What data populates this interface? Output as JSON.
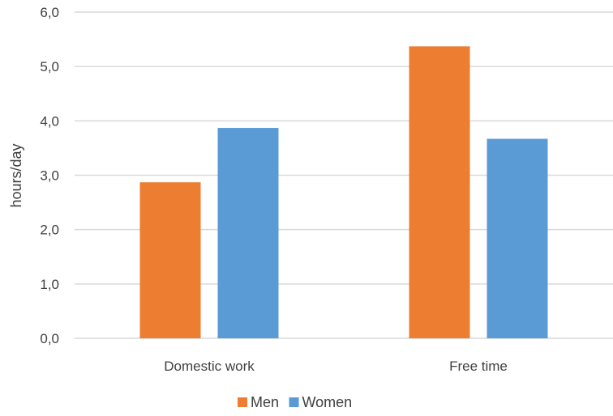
{
  "chart_data": {
    "type": "bar",
    "categories": [
      "Domestic work",
      "Free time"
    ],
    "series": [
      {
        "name": "Men",
        "values": [
          2.87,
          5.37
        ],
        "color": "#ED7D31"
      },
      {
        "name": "Women",
        "values": [
          3.87,
          3.67
        ],
        "color": "#5B9BD5"
      }
    ],
    "title": "",
    "xlabel": "",
    "ylabel": "hours/day",
    "ylim": [
      0,
      6
    ],
    "yticks": [
      "0,0",
      "1,0",
      "2,0",
      "3,0",
      "4,0",
      "5,0",
      "6,0"
    ],
    "grid": true,
    "legend_position": "bottom",
    "gridline_color": "#D9D9D9"
  }
}
